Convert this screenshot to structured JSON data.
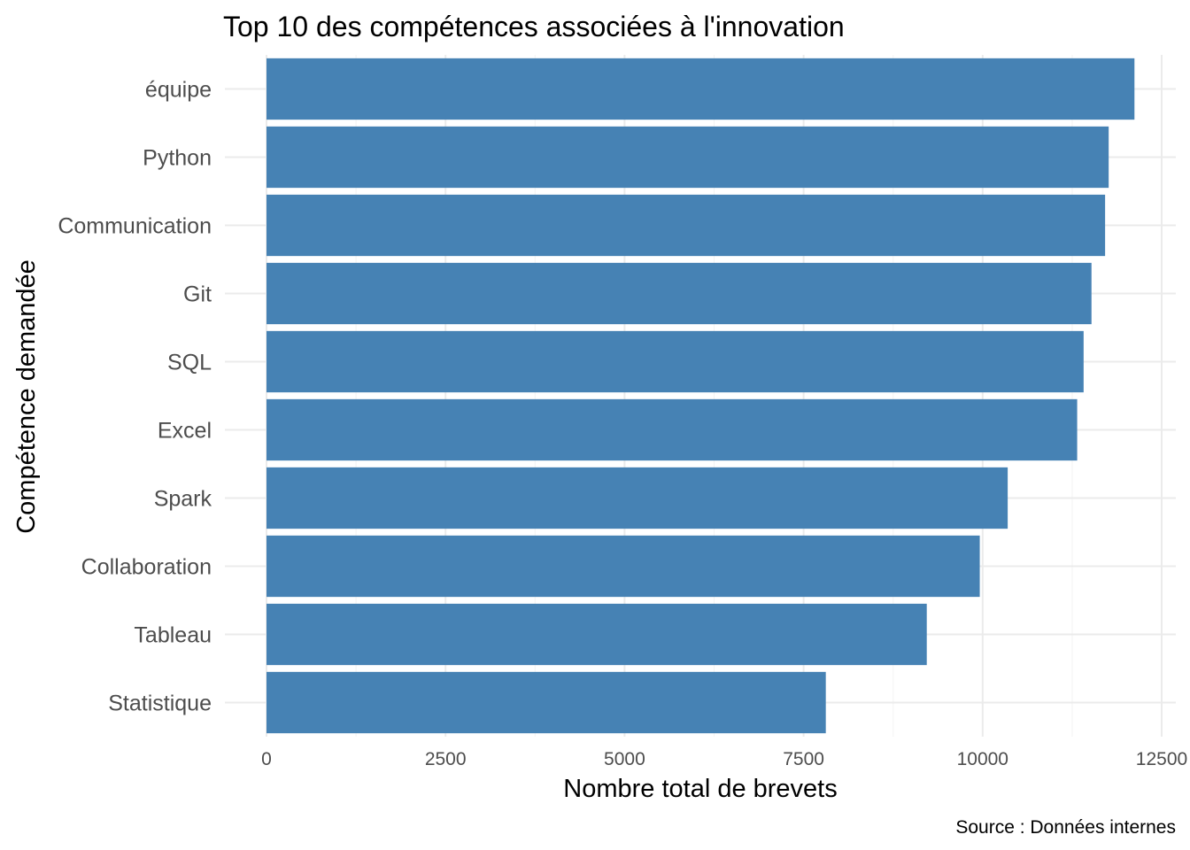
{
  "chart_data": {
    "type": "bar",
    "orientation": "horizontal",
    "title": "Top 10 des compétences associées à l'innovation",
    "xlabel": "Nombre total de brevets",
    "ylabel": "Compétence demandée",
    "caption": "Source : Données internes",
    "categories": [
      "équipe",
      "Python",
      "Communication",
      "Git",
      "SQL",
      "Excel",
      "Spark",
      "Collaboration",
      "Tableau",
      "Statistique"
    ],
    "values": [
      12120,
      11760,
      11710,
      11520,
      11410,
      11320,
      10350,
      9960,
      9220,
      7810
    ],
    "xlim": [
      0,
      12500
    ],
    "xticks": [
      "0",
      "2500",
      "5000",
      "7500",
      "10000",
      "12500"
    ],
    "xtick_values": [
      0,
      2500,
      5000,
      7500,
      10000,
      12500
    ],
    "bar_color": "#4682B4",
    "grid": true,
    "legend": "none"
  }
}
